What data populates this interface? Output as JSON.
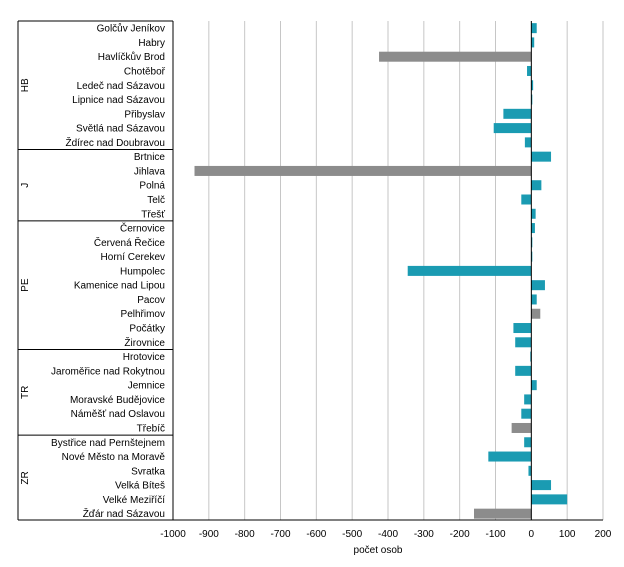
{
  "chart_data": {
    "type": "bar",
    "orientation": "horizontal",
    "xlabel": "počet osob",
    "xlim": [
      -1000,
      200
    ],
    "xticks": [
      -1000,
      -900,
      -800,
      -700,
      -600,
      -500,
      -400,
      -300,
      -200,
      -100,
      0,
      100,
      200
    ],
    "grid": true,
    "colors": {
      "default": "#1a9bb2",
      "highlight": "#8c8c8c"
    },
    "groups": [
      {
        "name": "HB",
        "items": [
          {
            "label": "Golčův Jeníkov",
            "value": 15,
            "highlight": false
          },
          {
            "label": "Habry",
            "value": 8,
            "highlight": false
          },
          {
            "label": "Havlíčkův Brod",
            "value": -425,
            "highlight": true
          },
          {
            "label": "Chotěboř",
            "value": -12,
            "highlight": false
          },
          {
            "label": "Ledeč nad Sázavou",
            "value": 5,
            "highlight": false
          },
          {
            "label": "Lipnice nad Sázavou",
            "value": 2,
            "highlight": false
          },
          {
            "label": "Přibyslav",
            "value": -78,
            "highlight": false
          },
          {
            "label": "Světlá nad Sázavou",
            "value": -105,
            "highlight": false
          },
          {
            "label": "Ždírec nad Doubravou",
            "value": -18,
            "highlight": false
          }
        ]
      },
      {
        "name": "J",
        "items": [
          {
            "label": "Brtnice",
            "value": 55,
            "highlight": false
          },
          {
            "label": "Jihlava",
            "value": -940,
            "highlight": true
          },
          {
            "label": "Polná",
            "value": 28,
            "highlight": false
          },
          {
            "label": "Telč",
            "value": -28,
            "highlight": false
          },
          {
            "label": "Třešť",
            "value": 12,
            "highlight": false
          }
        ]
      },
      {
        "name": "PE",
        "items": [
          {
            "label": "Černovice",
            "value": 10,
            "highlight": false
          },
          {
            "label": "Červená Řečice",
            "value": 2,
            "highlight": false
          },
          {
            "label": "Horní Cerekev",
            "value": 1,
            "highlight": false
          },
          {
            "label": "Humpolec",
            "value": -345,
            "highlight": false
          },
          {
            "label": "Kamenice nad Lipou",
            "value": 38,
            "highlight": false
          },
          {
            "label": "Pacov",
            "value": 15,
            "highlight": false
          },
          {
            "label": "Pelhřimov",
            "value": 25,
            "highlight": true
          },
          {
            "label": "Počátky",
            "value": -50,
            "highlight": false
          },
          {
            "label": "Žirovnice",
            "value": -45,
            "highlight": false
          }
        ]
      },
      {
        "name": "TR",
        "items": [
          {
            "label": "Hrotovice",
            "value": -3,
            "highlight": false
          },
          {
            "label": "Jaroměřice nad Rokytnou",
            "value": -45,
            "highlight": false
          },
          {
            "label": "Jemnice",
            "value": 15,
            "highlight": false
          },
          {
            "label": "Moravské Budějovice",
            "value": -20,
            "highlight": false
          },
          {
            "label": "Náměšť nad Oslavou",
            "value": -28,
            "highlight": false
          },
          {
            "label": "Třebíč",
            "value": -55,
            "highlight": true
          }
        ]
      },
      {
        "name": "ZR",
        "items": [
          {
            "label": "Bystřice nad Pernštejnem",
            "value": -20,
            "highlight": false
          },
          {
            "label": "Nové Město na Moravě",
            "value": -120,
            "highlight": false
          },
          {
            "label": "Svratka",
            "value": -8,
            "highlight": false
          },
          {
            "label": "Velká Bíteš",
            "value": 55,
            "highlight": false
          },
          {
            "label": "Velké Meziříčí",
            "value": 100,
            "highlight": false
          },
          {
            "label": "Žďár nad Sázavou",
            "value": -160,
            "highlight": true
          }
        ]
      }
    ]
  }
}
